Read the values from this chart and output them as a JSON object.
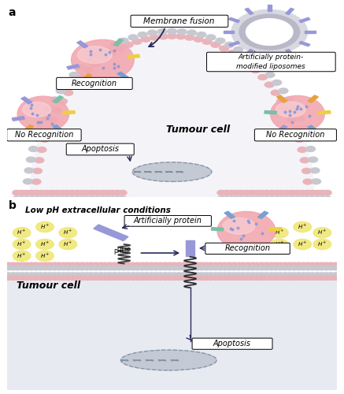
{
  "fig_width": 4.37,
  "fig_height": 5.0,
  "dpi": 100,
  "bg_color": "#ffffff",
  "panel_a_label": "a",
  "panel_b_label": "b",
  "label_fontsize": 10,
  "tumour_cell_text_a": "Tumour cell",
  "tumour_cell_text_b": "Tumour cell",
  "membrane_fusion_text": "Membrane fusion",
  "artificially_protein_modified_liposomes_text": "Artificially protein-\nmodified liposomes",
  "recognition_text_a": "Recognition",
  "no_recognition_left_text": "No Recognition",
  "no_recognition_right_text": "No Recognition",
  "apoptosis_text_a": "Apoptosis",
  "low_ph_text": "Low pH extracellular conditions",
  "artificially_protein_text": "Artificially protein",
  "phlip_text": "pHLIP",
  "recognition_text_b": "Recognition",
  "apoptosis_text_b": "Apoptosis",
  "cell_pink": "#f2a8b0",
  "cell_pink_light": "#fad8dc",
  "membrane_pink": "#e8b4ba",
  "membrane_gray": "#c8c8d0",
  "membrane_gray2": "#b0b0bc",
  "liposome_outer": "#d8d8e0",
  "liposome_inner": "#b8b8c8",
  "nucleus_color": "#b8c0cc",
  "purple_protein": "#9898d8",
  "blue_protein": "#78a0d0",
  "teal_protein": "#78c0a8",
  "yellow_protein": "#ecd040",
  "orange_protein": "#e8a040",
  "h_ion_color": "#f0e878",
  "arrow_color": "#2a2a5a",
  "cell_interior_a": "#f4f4f8",
  "cell_interior_b": "#e8eaf2"
}
